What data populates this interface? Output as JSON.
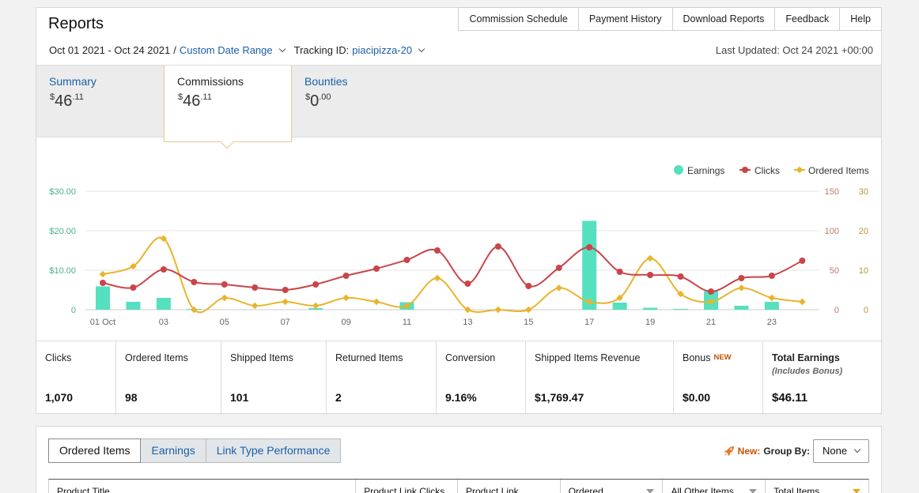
{
  "header": {
    "title": "Reports",
    "nav": [
      "Commission Schedule",
      "Payment History",
      "Download Reports",
      "Feedback",
      "Help"
    ],
    "date_range": "Oct 01 2021 - Oct 24 2021",
    "date_range_sep": "/",
    "custom_range_label": "Custom Date Range",
    "tracking_label": "Tracking ID:",
    "tracking_id": "piacipizza-20",
    "last_updated": "Last Updated: Oct 24 2021 +00:00"
  },
  "summary_tabs": [
    {
      "label": "Summary",
      "cur": "$",
      "whole": "46",
      "frac": ".11"
    },
    {
      "label": "Commissions",
      "cur": "$",
      "whole": "46",
      "frac": ".11"
    },
    {
      "label": "Bounties",
      "cur": "$",
      "whole": "0",
      "frac": ".00"
    }
  ],
  "colors": {
    "earnings": "#55e0c0",
    "clicks": "#c9454a",
    "ordered": "#e9b42c",
    "link": "#1a5fa8",
    "accent": "#c45500"
  },
  "chart_data": {
    "type": "bar+line",
    "legend": [
      "Earnings",
      "Clicks",
      "Ordered Items"
    ],
    "legend_position": "top-right",
    "x_tick_labels": [
      "01 Oct",
      "03",
      "05",
      "07",
      "09",
      "11",
      "13",
      "15",
      "17",
      "19",
      "21",
      "23"
    ],
    "left_axis": {
      "ticks": [
        "$30.00",
        "$20.00",
        "$10.00",
        "0"
      ],
      "range": [
        0,
        30
      ]
    },
    "right_axis_clicks": {
      "ticks": [
        "150",
        "100",
        "50",
        "0"
      ],
      "range": [
        0,
        150
      ]
    },
    "right_axis_ordered": {
      "ticks": [
        "30",
        "20",
        "10",
        "0"
      ],
      "range": [
        0,
        30
      ]
    },
    "x": [
      1,
      2,
      3,
      4,
      5,
      6,
      7,
      8,
      9,
      10,
      11,
      12,
      13,
      14,
      15,
      16,
      17,
      18,
      19,
      20,
      21,
      22,
      23,
      24
    ],
    "series": [
      {
        "name": "Earnings",
        "kind": "bar",
        "values": [
          5.9,
          2.0,
          3.0,
          0.2,
          0,
          0,
          0,
          0.4,
          0,
          0,
          1.9,
          0,
          0,
          0,
          0,
          0,
          22.5,
          1.8,
          0.5,
          0.2,
          4.7,
          1.0,
          2.0,
          0
        ]
      },
      {
        "name": "Clicks",
        "kind": "line",
        "axis": "clicks",
        "values": [
          34,
          28,
          51,
          35,
          32,
          28,
          25,
          32,
          43,
          52,
          63,
          75,
          33,
          80,
          30,
          53,
          79,
          48,
          44,
          42,
          23,
          40,
          43,
          62
        ]
      },
      {
        "name": "Ordered Items",
        "kind": "line",
        "axis": "ordered",
        "values": [
          9,
          11,
          18,
          0,
          3,
          1,
          2,
          1,
          3,
          2,
          1,
          8,
          0,
          0,
          0,
          5.5,
          2,
          3,
          13,
          4,
          2,
          5.5,
          3,
          2
        ]
      }
    ]
  },
  "metrics": [
    {
      "label": "Clicks",
      "value": "1,070"
    },
    {
      "label": "Ordered Items",
      "value": "98"
    },
    {
      "label": "Shipped Items",
      "value": "101"
    },
    {
      "label": "Returned Items",
      "value": "2"
    },
    {
      "label": "Conversion",
      "value": "9.16%"
    },
    {
      "label": "Shipped Items Revenue",
      "value": "$1,769.47"
    },
    {
      "label": "Bonus",
      "badge": "NEW",
      "value": "$0.00"
    },
    {
      "label": "Total Earnings",
      "sub": "(Includes Bonus)",
      "value": "$46.11"
    }
  ],
  "bottom": {
    "tabs": [
      "Ordered Items",
      "Earnings",
      "Link Type Performance"
    ],
    "new_label": "New:",
    "group_by_label": "Group By:",
    "group_by_value": "None",
    "columns": [
      "Product Title",
      "Product Link Clicks",
      "Product Link",
      "Ordered",
      "All Other Items",
      "Total Items"
    ]
  }
}
